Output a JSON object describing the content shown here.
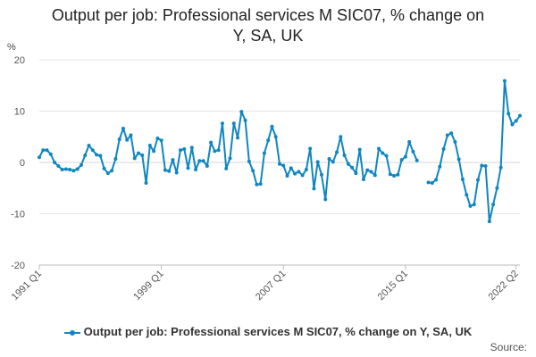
{
  "chart_data": {
    "type": "line",
    "title_lines": [
      "Output per job: Professional services M SIC07, % change on",
      "Y, SA, UK"
    ],
    "ylabel": "%",
    "ylim": [
      -20,
      20
    ],
    "yticks": [
      20,
      10,
      0,
      -10,
      -20
    ],
    "xtick_labels": [
      "1991 Q1",
      "1999 Q1",
      "2007 Q1",
      "2015 Q1",
      "2022 Q2"
    ],
    "xtick_index": [
      0,
      32,
      64,
      96,
      125
    ],
    "series": [
      {
        "name": "Output per job: Professional services M SIC07, % change on Y, SA, UK",
        "color": "#0f86c0",
        "values": [
          1.0,
          2.4,
          2.4,
          1.6,
          0.0,
          -0.7,
          -1.4,
          -1.3,
          -1.4,
          -1.6,
          -1.3,
          -0.5,
          1.4,
          3.3,
          2.4,
          1.5,
          1.3,
          -1.2,
          -2.1,
          -1.6,
          0.7,
          4.5,
          6.6,
          4.4,
          5.3,
          0.8,
          1.8,
          1.4,
          -4.0,
          3.3,
          2.2,
          4.7,
          4.3,
          -1.5,
          -1.7,
          0.5,
          -2.0,
          2.4,
          2.6,
          -1.1,
          2.9,
          -1.4,
          0.3,
          0.3,
          -0.7,
          3.9,
          2.2,
          2.4,
          7.6,
          -1.2,
          0.8,
          7.6,
          4.8,
          9.9,
          8.2,
          0.2,
          -1.6,
          -4.3,
          -4.2,
          1.8,
          4.3,
          7.0,
          5.0,
          -0.3,
          -0.6,
          -2.6,
          -1.1,
          -2.2,
          -1.8,
          -2.5,
          -1.4,
          2.7,
          -5.1,
          0.1,
          -2.4,
          -7.2,
          0.7,
          0.1,
          2.0,
          5.0,
          1.4,
          -0.3,
          -1.0,
          -2.1,
          2.5,
          -3.3,
          -1.5,
          -1.8,
          -2.5,
          2.7,
          1.8,
          1.3,
          -2.3,
          -2.6,
          -2.4,
          0.5,
          1.1,
          4.0,
          2.1,
          0.4,
          null,
          null,
          -3.9,
          -4.0,
          -3.4,
          -0.8,
          2.6,
          5.3,
          5.7,
          4.0,
          0.6,
          -3.3,
          -6.3,
          -8.5,
          -8.2,
          -3.4,
          -0.6,
          -0.7,
          -11.5,
          -8.2,
          -5.0,
          -1.0,
          15.9,
          9.5,
          7.4,
          8.1,
          9.1
        ]
      }
    ]
  },
  "legend_label": "Output per job: Professional services M SIC07, % change on Y, SA, UK",
  "source_label": "Source:"
}
